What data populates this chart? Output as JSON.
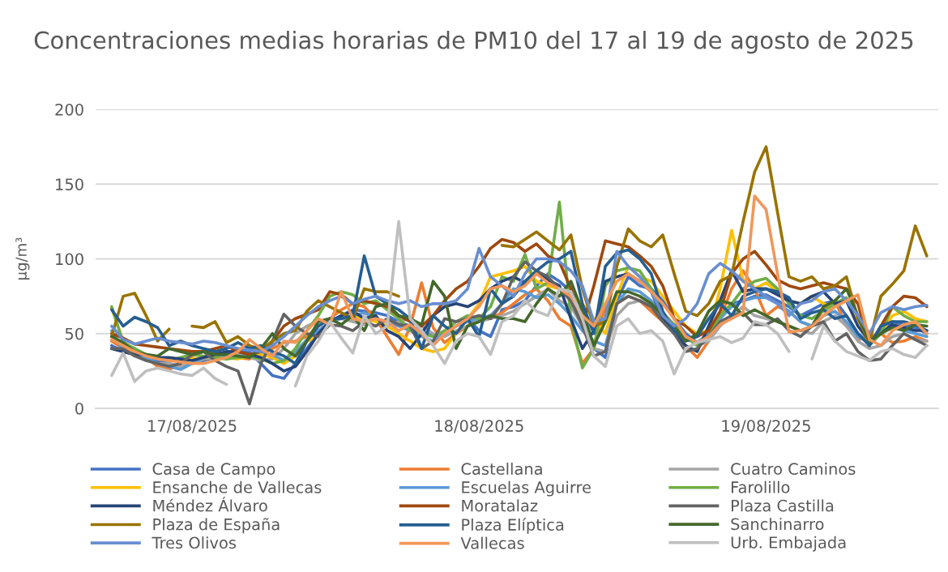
{
  "chart_data": {
    "type": "line",
    "title": "Concentraciones medias horarias de PM10 del 17 al 19 de agosto de 2025",
    "ylabel": "µg/m³",
    "categories": [
      null,
      null,
      null,
      null,
      null,
      null,
      null,
      "17/08/2025",
      null,
      null,
      null,
      null,
      null,
      null,
      null,
      null,
      null,
      null,
      null,
      null,
      null,
      null,
      null,
      null,
      null,
      null,
      null,
      null,
      null,
      null,
      null,
      null,
      "18/08/2025",
      null,
      null,
      null,
      null,
      null,
      null,
      null,
      null,
      null,
      null,
      null,
      null,
      null,
      null,
      null,
      null,
      null,
      null,
      null,
      null,
      null,
      null,
      null,
      null,
      "19/08/2025",
      null,
      null,
      null,
      null,
      null,
      null,
      null,
      null,
      null,
      null,
      null,
      null,
      null,
      null
    ],
    "ylim": [
      0,
      200
    ],
    "yticks": [
      0,
      50,
      100,
      150,
      200
    ],
    "grid": "y",
    "legend": "bottom",
    "marker": "none",
    "line_style": "solid",
    "series": [
      {
        "name": "Casa de Campo",
        "color": "#4472c4",
        "values": [
          42,
          38,
          36,
          34,
          32,
          30,
          28,
          30,
          32,
          34,
          36,
          40,
          38,
          30,
          22,
          20,
          30,
          40,
          50,
          58,
          62,
          66,
          65,
          64,
          62,
          58,
          55,
          52,
          48,
          50,
          55,
          60,
          52,
          48,
          66,
          68,
          72,
          82,
          90,
          85,
          78,
          68,
          40,
          34,
          72,
          88,
          82,
          80,
          72,
          60,
          50,
          44,
          48,
          60,
          70,
          72,
          75,
          76,
          72,
          68,
          62,
          66,
          70,
          72,
          62,
          50,
          44,
          52,
          58,
          56,
          54,
          50
        ]
      },
      {
        "name": "Castellana",
        "color": "#ed7d31",
        "values": [
          45,
          40,
          36,
          34,
          28,
          26,
          30,
          35,
          38,
          38,
          36,
          34,
          33,
          36,
          40,
          44,
          45,
          48,
          55,
          60,
          66,
          70,
          68,
          60,
          48,
          36,
          55,
          84,
          54,
          44,
          50,
          55,
          62,
          60,
          64,
          70,
          76,
          80,
          72,
          60,
          55,
          30,
          40,
          68,
          70,
          75,
          72,
          65,
          58,
          50,
          42,
          34,
          45,
          60,
          80,
          92,
          80,
          62,
          68,
          65,
          58,
          55,
          66,
          72,
          55,
          46,
          48,
          50,
          44,
          45,
          48,
          45
        ]
      },
      {
        "name": "Cuatro Caminos",
        "color": "#a5a5a5",
        "values": [
          40,
          38,
          36,
          33,
          30,
          30,
          28,
          30,
          33,
          34,
          35,
          36,
          34,
          32,
          33,
          40,
          50,
          55,
          58,
          60,
          60,
          58,
          56,
          60,
          55,
          58,
          60,
          55,
          50,
          48,
          52,
          55,
          58,
          60,
          62,
          65,
          70,
          75,
          80,
          72,
          68,
          55,
          40,
          38,
          62,
          70,
          72,
          68,
          62,
          55,
          48,
          42,
          45,
          55,
          62,
          68,
          62,
          60,
          58,
          55,
          52,
          50,
          58,
          62,
          55,
          45,
          40,
          42,
          48,
          50,
          46,
          45
        ]
      },
      {
        "name": "Ensanche de Vallecas",
        "color": "#ffc000",
        "values": [
          67,
          45,
          38,
          35,
          34,
          33,
          32,
          33,
          34,
          35,
          34,
          33,
          35,
          36,
          34,
          30,
          35,
          45,
          48,
          58,
          60,
          62,
          60,
          58,
          55,
          50,
          45,
          40,
          38,
          40,
          50,
          60,
          70,
          88,
          90,
          92,
          95,
          85,
          82,
          80,
          75,
          70,
          60,
          50,
          75,
          95,
          88,
          85,
          75,
          65,
          55,
          50,
          52,
          80,
          119,
          86,
          80,
          84,
          78,
          72,
          70,
          75,
          70,
          68,
          72,
          60,
          45,
          50,
          62,
          65,
          60,
          58
        ]
      },
      {
        "name": "Escuelas Aguirre",
        "color": "#5b9bd5",
        "values": [
          52,
          38,
          36,
          34,
          30,
          28,
          26,
          30,
          34,
          36,
          35,
          34,
          36,
          38,
          36,
          32,
          38,
          46,
          52,
          58,
          60,
          62,
          64,
          60,
          58,
          55,
          52,
          48,
          45,
          50,
          55,
          58,
          60,
          62,
          70,
          80,
          78,
          74,
          76,
          70,
          62,
          52,
          45,
          42,
          70,
          80,
          78,
          72,
          62,
          52,
          46,
          44,
          50,
          60,
          68,
          72,
          74,
          74,
          70,
          65,
          58,
          55,
          62,
          65,
          58,
          48,
          44,
          50,
          55,
          52,
          50,
          48
        ]
      },
      {
        "name": "Farolillo",
        "color": "#70ad47",
        "values": [
          68,
          44,
          40,
          36,
          34,
          32,
          34,
          36,
          35,
          34,
          33,
          34,
          35,
          33,
          30,
          32,
          40,
          52,
          62,
          75,
          78,
          76,
          70,
          72,
          66,
          60,
          52,
          50,
          48,
          52,
          58,
          62,
          60,
          68,
          88,
          85,
          103,
          80,
          84,
          138,
          60,
          27,
          40,
          82,
          92,
          94,
          92,
          80,
          64,
          56,
          48,
          42,
          48,
          62,
          70,
          80,
          85,
          87,
          80,
          70,
          62,
          60,
          65,
          70,
          74,
          62,
          42,
          50,
          68,
          62,
          58,
          58
        ]
      },
      {
        "name": "Méndez Álvaro",
        "color": "#264478",
        "values": [
          40,
          38,
          36,
          36,
          34,
          34,
          33,
          32,
          34,
          36,
          38,
          38,
          36,
          34,
          30,
          25,
          28,
          38,
          50,
          58,
          62,
          65,
          60,
          62,
          52,
          48,
          40,
          50,
          62,
          68,
          70,
          68,
          72,
          80,
          85,
          88,
          84,
          92,
          86,
          82,
          60,
          40,
          52,
          85,
          88,
          90,
          85,
          78,
          60,
          50,
          42,
          38,
          55,
          72,
          92,
          78,
          80,
          80,
          76,
          72,
          70,
          75,
          78,
          70,
          72,
          55,
          45,
          50,
          56,
          54,
          52,
          52
        ]
      },
      {
        "name": "Moratalaz",
        "color": "#9e480e",
        "values": [
          50,
          47,
          43,
          42,
          41,
          40,
          39,
          38,
          38,
          40,
          42,
          38,
          36,
          38,
          45,
          55,
          60,
          63,
          66,
          78,
          76,
          70,
          72,
          70,
          68,
          62,
          58,
          55,
          62,
          72,
          80,
          85,
          95,
          107,
          113,
          111,
          105,
          110,
          102,
          98,
          80,
          55,
          82,
          112,
          110,
          108,
          102,
          95,
          82,
          60,
          55,
          48,
          52,
          65,
          90,
          100,
          105,
          96,
          86,
          82,
          80,
          82,
          84,
          82,
          80,
          70,
          42,
          55,
          68,
          75,
          74,
          68
        ]
      },
      {
        "name": "Plaza Castilla",
        "color": "#636363",
        "values": [
          40,
          40,
          35,
          32,
          30,
          28,
          30,
          36,
          38,
          32,
          28,
          25,
          3,
          30,
          45,
          63,
          55,
          50,
          48,
          56,
          55,
          52,
          58,
          55,
          60,
          56,
          55,
          40,
          45,
          60,
          58,
          60,
          62,
          60,
          70,
          88,
          98,
          92,
          88,
          80,
          72,
          55,
          35,
          38,
          70,
          75,
          72,
          68,
          58,
          50,
          38,
          40,
          48,
          58,
          62,
          64,
          56,
          56,
          60,
          52,
          48,
          55,
          58,
          45,
          50,
          38,
          32,
          33,
          42,
          50,
          46,
          42
        ]
      },
      {
        "name": "Plaza de España",
        "color": "#997300",
        "values": [
          48,
          75,
          77,
          62,
          45,
          53,
          null,
          55,
          54,
          58,
          44,
          48,
          42,
          39,
          45,
          50,
          52,
          65,
          72,
          68,
          64,
          60,
          80,
          78,
          78,
          75,
          null,
          null,
          null,
          null,
          null,
          null,
          null,
          null,
          109,
          108,
          113,
          118,
          112,
          106,
          116,
          80,
          55,
          58,
          95,
          120,
          112,
          108,
          116,
          90,
          65,
          62,
          70,
          85,
          89,
          125,
          158,
          175,
          131,
          88,
          85,
          88,
          80,
          82,
          88,
          60,
          44,
          75,
          83,
          92,
          122,
          102
        ]
      },
      {
        "name": "Plaza Elíptica",
        "color": "#255e91",
        "values": [
          66,
          55,
          61,
          58,
          54,
          42,
          45,
          42,
          40,
          38,
          40,
          44,
          40,
          42,
          38,
          35,
          30,
          45,
          55,
          60,
          60,
          62,
          102,
          75,
          70,
          66,
          60,
          40,
          62,
          55,
          50,
          60,
          48,
          80,
          70,
          75,
          85,
          92,
          98,
          100,
          105,
          70,
          50,
          95,
          104,
          106,
          100,
          90,
          65,
          52,
          45,
          48,
          60,
          70,
          62,
          75,
          78,
          80,
          78,
          74,
          60,
          64,
          66,
          60,
          62,
          50,
          42,
          55,
          58,
          58,
          56,
          52
        ]
      },
      {
        "name": "Sanchinarro",
        "color": "#43682b",
        "values": [
          48,
          44,
          38,
          36,
          35,
          40,
          38,
          36,
          38,
          36,
          36,
          35,
          34,
          40,
          50,
          40,
          35,
          45,
          58,
          60,
          56,
          62,
          52,
          68,
          70,
          62,
          60,
          56,
          85,
          75,
          40,
          55,
          58,
          62,
          60,
          60,
          58,
          70,
          80,
          75,
          85,
          65,
          42,
          58,
          78,
          78,
          75,
          70,
          62,
          55,
          45,
          50,
          65,
          72,
          70,
          62,
          66,
          62,
          58,
          55,
          52,
          55,
          68,
          72,
          80,
          62,
          45,
          50,
          54,
          52,
          56,
          55
        ]
      },
      {
        "name": "Tres Olivos",
        "color": "#698ed0",
        "values": [
          55,
          46,
          43,
          45,
          47,
          45,
          44,
          43,
          45,
          44,
          42,
          40,
          39,
          38,
          42,
          48,
          55,
          62,
          68,
          72,
          75,
          70,
          73,
          75,
          72,
          70,
          72,
          68,
          70,
          70,
          72,
          80,
          107,
          88,
          82,
          75,
          90,
          100,
          100,
          98,
          92,
          82,
          58,
          60,
          105,
          95,
          88,
          78,
          62,
          55,
          60,
          70,
          90,
          97,
          92,
          85,
          80,
          75,
          70,
          62,
          70,
          72,
          78,
          80,
          72,
          62,
          50,
          64,
          68,
          66,
          68,
          69
        ]
      },
      {
        "name": "Vallecas",
        "color": "#f1975a",
        "values": [
          46,
          42,
          38,
          35,
          33,
          32,
          31,
          30,
          30,
          32,
          34,
          38,
          46,
          40,
          35,
          45,
          44,
          52,
          60,
          56,
          78,
          60,
          58,
          60,
          58,
          52,
          56,
          50,
          42,
          50,
          55,
          60,
          68,
          80,
          82,
          78,
          82,
          90,
          84,
          80,
          75,
          62,
          55,
          70,
          85,
          90,
          85,
          78,
          70,
          60,
          48,
          44,
          48,
          56,
          60,
          64,
          142,
          133,
          90,
          51,
          52,
          55,
          62,
          68,
          72,
          76,
          46,
          42,
          52,
          56,
          58,
          50
        ]
      },
      {
        "name": "Urb. Embajada",
        "color": "#bfbfbf",
        "values": [
          22,
          37,
          18,
          25,
          27,
          25,
          23,
          22,
          27,
          20,
          16,
          null,
          null,
          null,
          null,
          null,
          15,
          35,
          45,
          58,
          47,
          37,
          62,
          50,
          55,
          125,
          60,
          52,
          42,
          30,
          45,
          50,
          48,
          36,
          58,
          62,
          72,
          65,
          62,
          80,
          78,
          60,
          35,
          28,
          55,
          60,
          50,
          52,
          45,
          23,
          40,
          44,
          46,
          48,
          44,
          47,
          58,
          56,
          50,
          38,
          null,
          33,
          55,
          45,
          38,
          35,
          32,
          38,
          40,
          36,
          34,
          42
        ]
      }
    ]
  }
}
